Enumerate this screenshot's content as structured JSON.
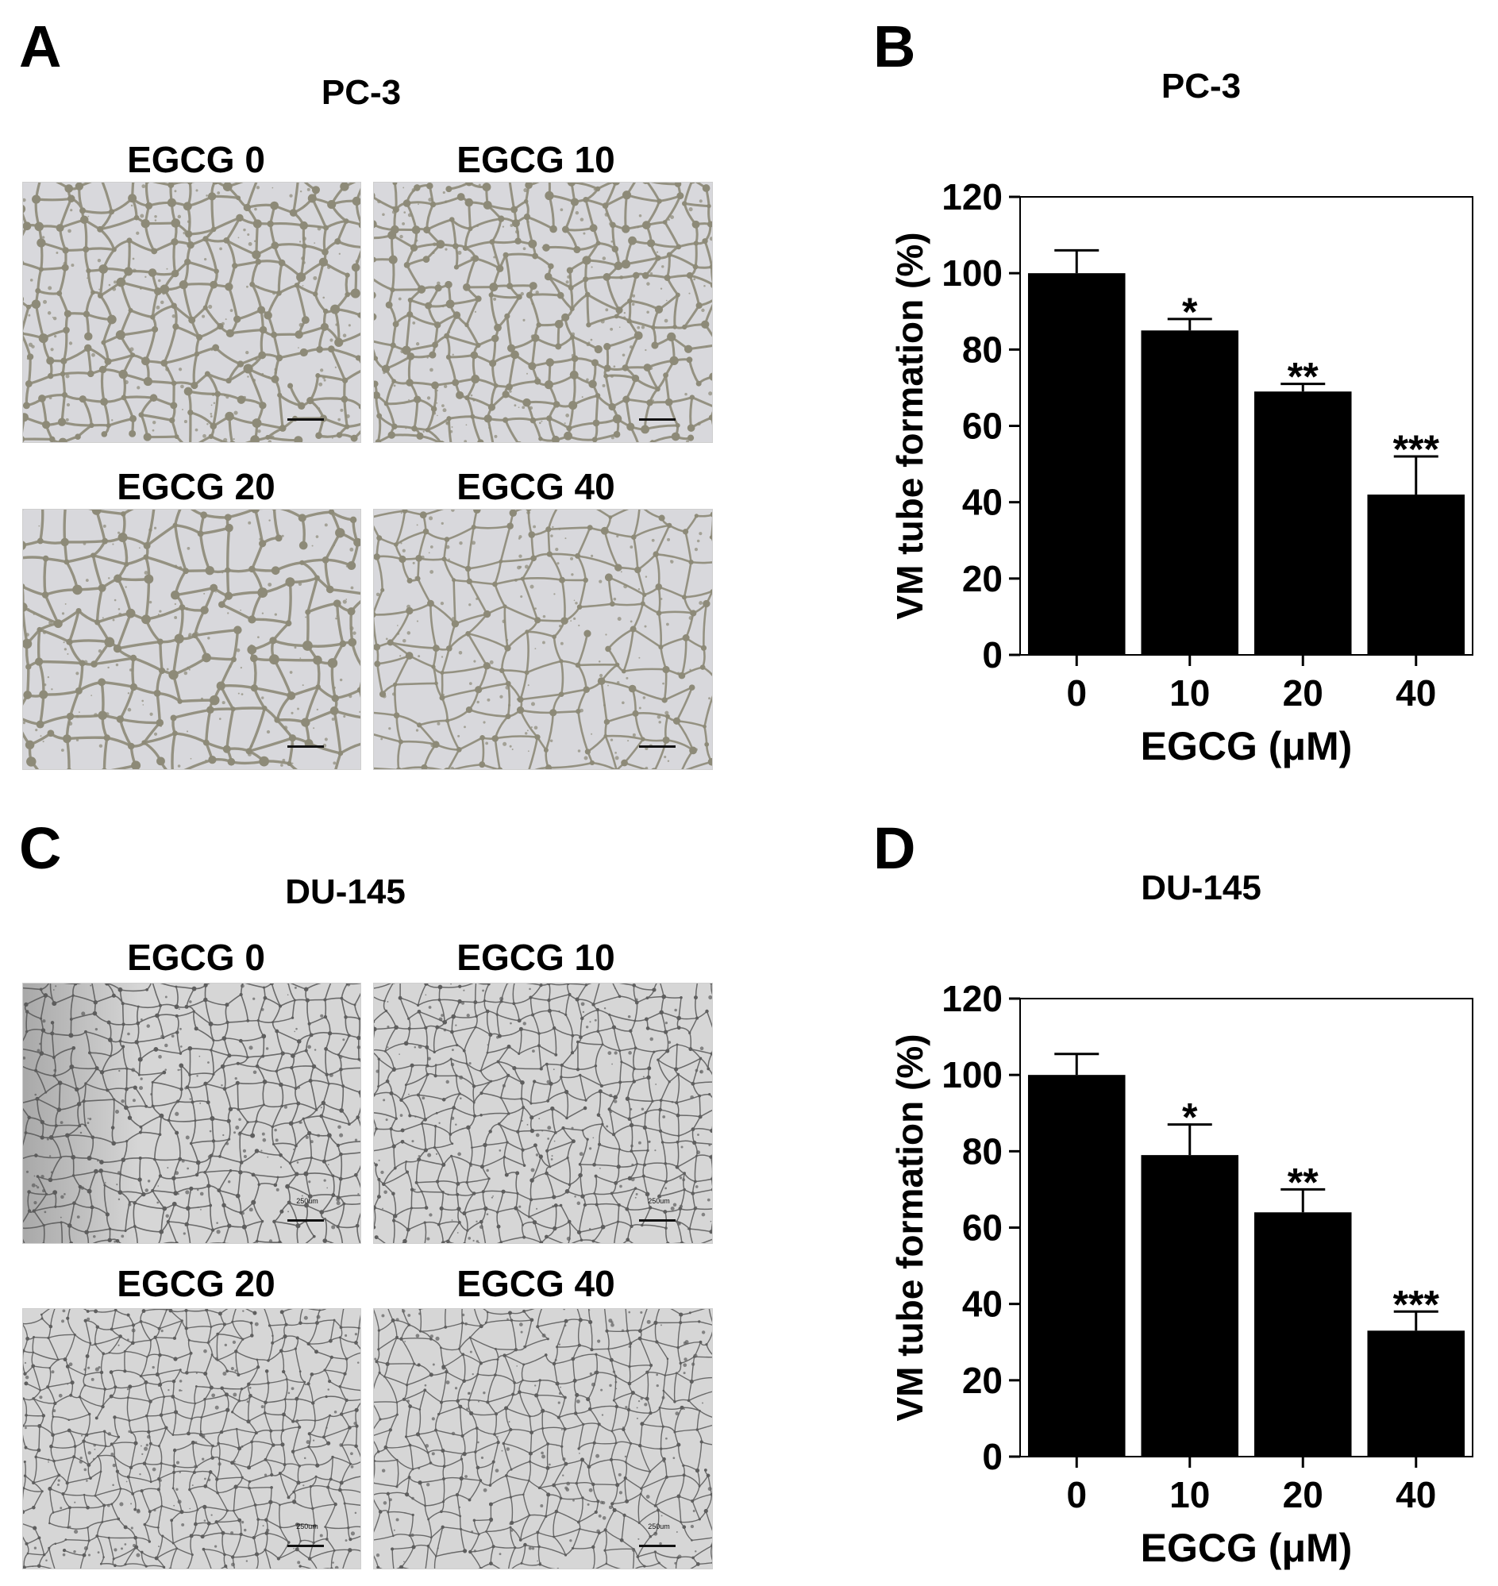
{
  "panels": {
    "A": {
      "letter": "A",
      "cell_line": "PC-3",
      "images": [
        {
          "label": "EGCG 0"
        },
        {
          "label": "EGCG 10"
        },
        {
          "label": "EGCG 20"
        },
        {
          "label": "EGCG 40"
        }
      ]
    },
    "B": {
      "letter": "B",
      "cell_line": "PC-3"
    },
    "C": {
      "letter": "C",
      "cell_line": "DU-145",
      "images": [
        {
          "label": "EGCG 0",
          "scale_label": "250um"
        },
        {
          "label": "EGCG 10",
          "scale_label": "250um"
        },
        {
          "label": "EGCG 20",
          "scale_label": "250um"
        },
        {
          "label": "EGCG 40",
          "scale_label": "250um"
        }
      ]
    },
    "D": {
      "letter": "D",
      "cell_line": "DU-145"
    }
  },
  "colors": {
    "bar": "#000000",
    "pc3_background": "#d8d8dc",
    "pc3_network": "#8d8a78",
    "du145_background": "#d6d6d6",
    "du145_network": "#5e5e5e"
  },
  "chart_data": [
    {
      "type": "bar",
      "title": "PC-3",
      "categories": [
        "0",
        "10",
        "20",
        "40"
      ],
      "values": [
        100,
        85,
        69,
        42
      ],
      "errors": [
        6,
        3,
        2,
        10
      ],
      "annotations": [
        "",
        "*",
        "**",
        "***"
      ],
      "xlabel": "EGCG (μM)",
      "ylabel": "VM tube formation (%)",
      "ylim": [
        0,
        120
      ],
      "yticks": [
        "0",
        "20",
        "40",
        "60",
        "80",
        "100",
        "120"
      ],
      "grid": false
    },
    {
      "type": "bar",
      "title": "DU-145",
      "categories": [
        "0",
        "10",
        "20",
        "40"
      ],
      "values": [
        100,
        79,
        64,
        33
      ],
      "errors": [
        5.5,
        8,
        6,
        5
      ],
      "annotations": [
        "",
        "*",
        "**",
        "***"
      ],
      "xlabel": "EGCG (μM)",
      "ylabel": "VM tube formation (%)",
      "ylim": [
        0,
        120
      ],
      "yticks": [
        "0",
        "20",
        "40",
        "60",
        "80",
        "100",
        "120"
      ],
      "grid": false
    }
  ]
}
